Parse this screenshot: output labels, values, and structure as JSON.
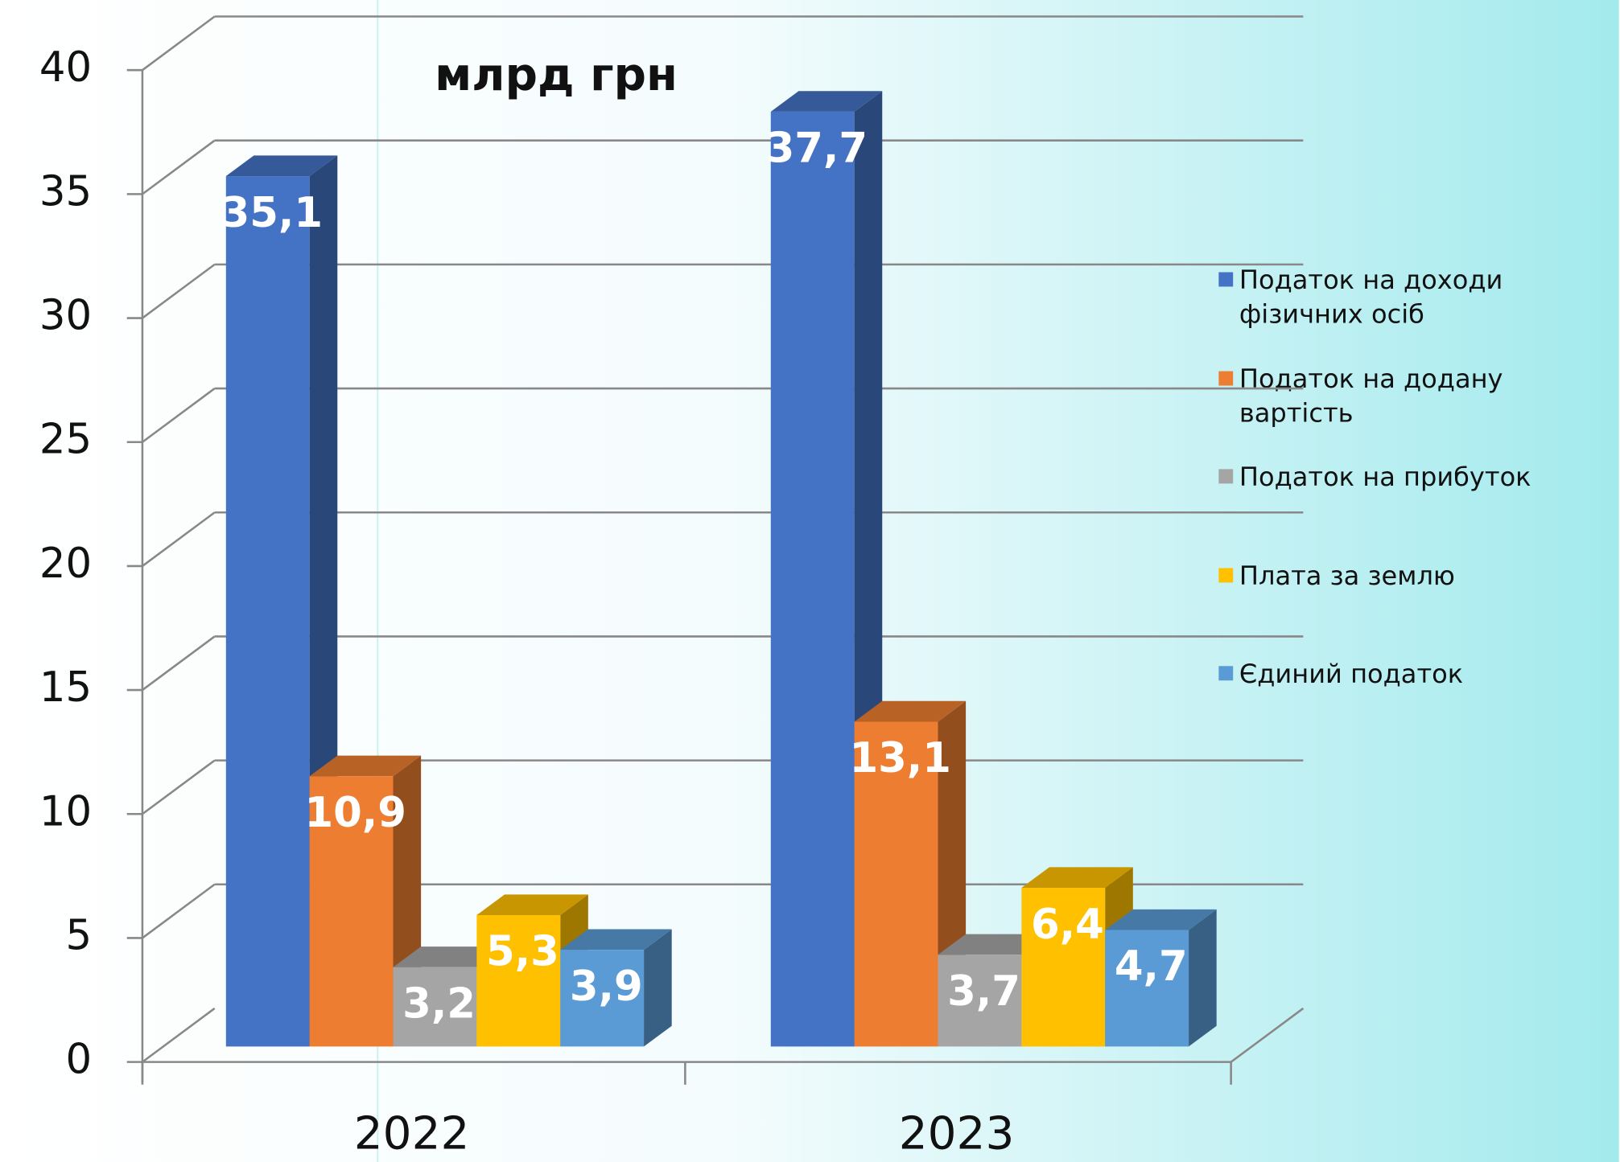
{
  "chart_data": {
    "type": "bar3d",
    "title": "млрд грн",
    "categories": [
      "2022",
      "2023"
    ],
    "series": [
      {
        "name": "Податок на доходи фізичних осіб",
        "color": "#4472c4",
        "values": [
          35.1,
          37.7
        ],
        "value_labels": [
          "35,1",
          "37,7"
        ]
      },
      {
        "name": "Податок на додану вартість",
        "color": "#ed7d31",
        "values": [
          10.9,
          13.1
        ],
        "value_labels": [
          "10,9",
          "13,1"
        ]
      },
      {
        "name": "Податок на прибуток",
        "color": "#a5a5a5",
        "values": [
          3.2,
          3.7
        ],
        "value_labels": [
          "3,2",
          "3,7"
        ]
      },
      {
        "name": "Плата за землю",
        "color": "#ffc000",
        "values": [
          5.3,
          6.4
        ],
        "value_labels": [
          "5,3",
          "6,4"
        ]
      },
      {
        "name": "Єдиний податок",
        "color": "#5b9bd5",
        "values": [
          3.9,
          4.7
        ],
        "value_labels": [
          "3,9",
          "4,7"
        ]
      }
    ],
    "ylim": [
      0,
      40
    ],
    "yticks": [
      0,
      5,
      10,
      15,
      20,
      25,
      30,
      35,
      40
    ],
    "grid": true,
    "legend": "right"
  }
}
